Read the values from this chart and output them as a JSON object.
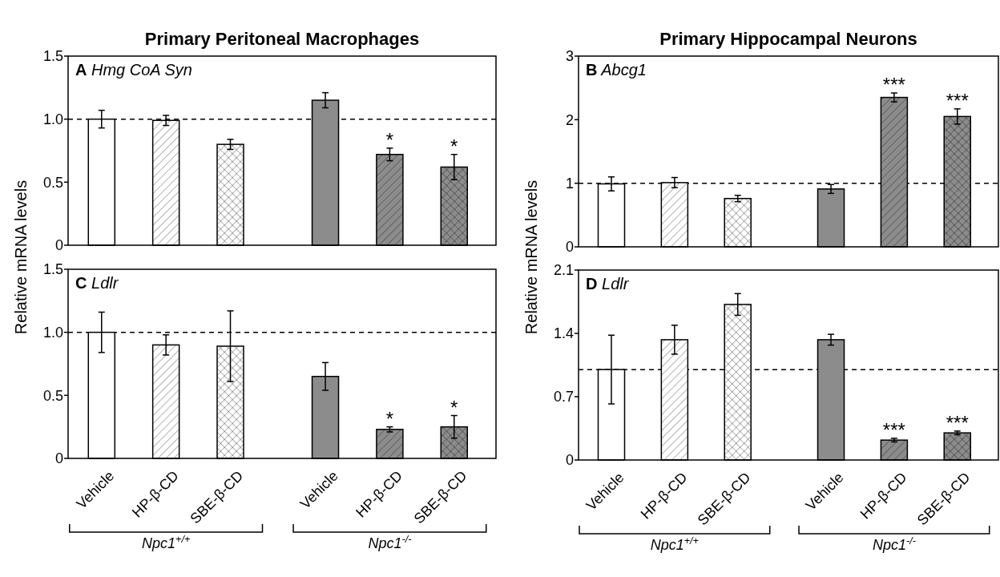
{
  "chart_data": [
    {
      "type": "bar",
      "title": "Primary Peritoneal Macrophages",
      "subtitle": "A Hmg CoA Syn",
      "ylabel": "Relative mRNA levels",
      "categories": [
        null,
        null,
        null,
        null,
        null,
        null
      ],
      "values": [
        1.0,
        0.99,
        0.8,
        1.15,
        0.72,
        0.62
      ],
      "errors": [
        0.07,
        0.04,
        0.04,
        0.06,
        0.05,
        0.1
      ],
      "colors": [
        "#ffffff",
        "#ffffff",
        "#ffffff",
        "#8c8c8c",
        "#8c8c8c",
        "#8c8c8c"
      ],
      "value_labels": [
        null,
        null,
        null,
        null,
        "*",
        "*"
      ],
      "ylim": [
        0,
        1.5
      ],
      "yticks": [
        0,
        0.5,
        {
          "value": 1,
          "label": "1.0"
        },
        1.5
      ],
      "ref_lines": [
        {
          "axis": "y",
          "value": 1,
          "line_style": "dashed"
        }
      ],
      "tick_labels": "y"
    },
    {
      "type": "bar",
      "title": "Primary Hippocampal Neurons",
      "subtitle": "B Abcg1",
      "ylabel": "Relative mRNA levels",
      "categories": [
        null,
        null,
        null,
        null,
        null,
        null
      ],
      "values": [
        0.99,
        1.01,
        0.76,
        0.91,
        2.35,
        2.05
      ],
      "errors": [
        0.11,
        0.08,
        0.05,
        0.07,
        0.07,
        0.12
      ],
      "colors": [
        "#ffffff",
        "#ffffff",
        "#ffffff",
        "#8c8c8c",
        "#8c8c8c",
        "#8c8c8c"
      ],
      "value_labels": [
        null,
        null,
        null,
        null,
        "***",
        "***"
      ],
      "ylim": [
        0,
        3
      ],
      "yticks": [
        0,
        1,
        2,
        3
      ],
      "ref_lines": [
        {
          "axis": "y",
          "value": 1,
          "line_style": "dashed"
        }
      ],
      "tick_labels": "y"
    },
    {
      "type": "bar",
      "subtitle": "C Ldlr",
      "categories": [
        "Vehicle",
        "HP-β-CD",
        "SBE-β-CD",
        "Vehicle",
        "HP-β-CD",
        "SBE-β-CD"
      ],
      "values": [
        1.0,
        0.9,
        0.89,
        0.65,
        0.23,
        0.25
      ],
      "errors": [
        0.16,
        0.08,
        0.28,
        0.11,
        0.02,
        0.09
      ],
      "colors": [
        "#ffffff",
        "#ffffff",
        "#ffffff",
        "#8c8c8c",
        "#8c8c8c",
        "#8c8c8c"
      ],
      "value_labels": [
        null,
        null,
        null,
        null,
        "*",
        "*"
      ],
      "ylim": [
        0,
        1.5
      ],
      "yticks": [
        0,
        0.5,
        {
          "value": 1,
          "label": "1.0"
        },
        1.5
      ],
      "ref_lines": [
        {
          "axis": "y",
          "value": 1,
          "line_style": "dashed"
        }
      ],
      "annotations": [
        "Npc1$^{+/+}$",
        "Npc1$^{-/-}$"
      ]
    },
    {
      "type": "bar",
      "subtitle": "D Ldlr",
      "categories": [
        "Vehicle",
        "HP-β-CD",
        "SBE-β-CD",
        "Vehicle",
        "HP-β-CD",
        "SBE-β-CD"
      ],
      "values": [
        1.0,
        1.33,
        1.72,
        1.33,
        0.22,
        0.3
      ],
      "errors": [
        0.38,
        0.16,
        0.12,
        0.06,
        0.02,
        0.02
      ],
      "colors": [
        "#ffffff",
        "#ffffff",
        "#ffffff",
        "#8c8c8c",
        "#8c8c8c",
        "#8c8c8c"
      ],
      "value_labels": [
        null,
        null,
        null,
        null,
        "***",
        "***"
      ],
      "ylim": [
        0,
        2.1
      ],
      "yticks": [
        0,
        0.7,
        1.4,
        2.1
      ],
      "ref_lines": [
        {
          "axis": "y",
          "value": 1,
          "line_style": "dashed"
        }
      ],
      "annotations": [
        "Npc1$^{+/+}$",
        "Npc1$^{-/-}$"
      ]
    }
  ]
}
